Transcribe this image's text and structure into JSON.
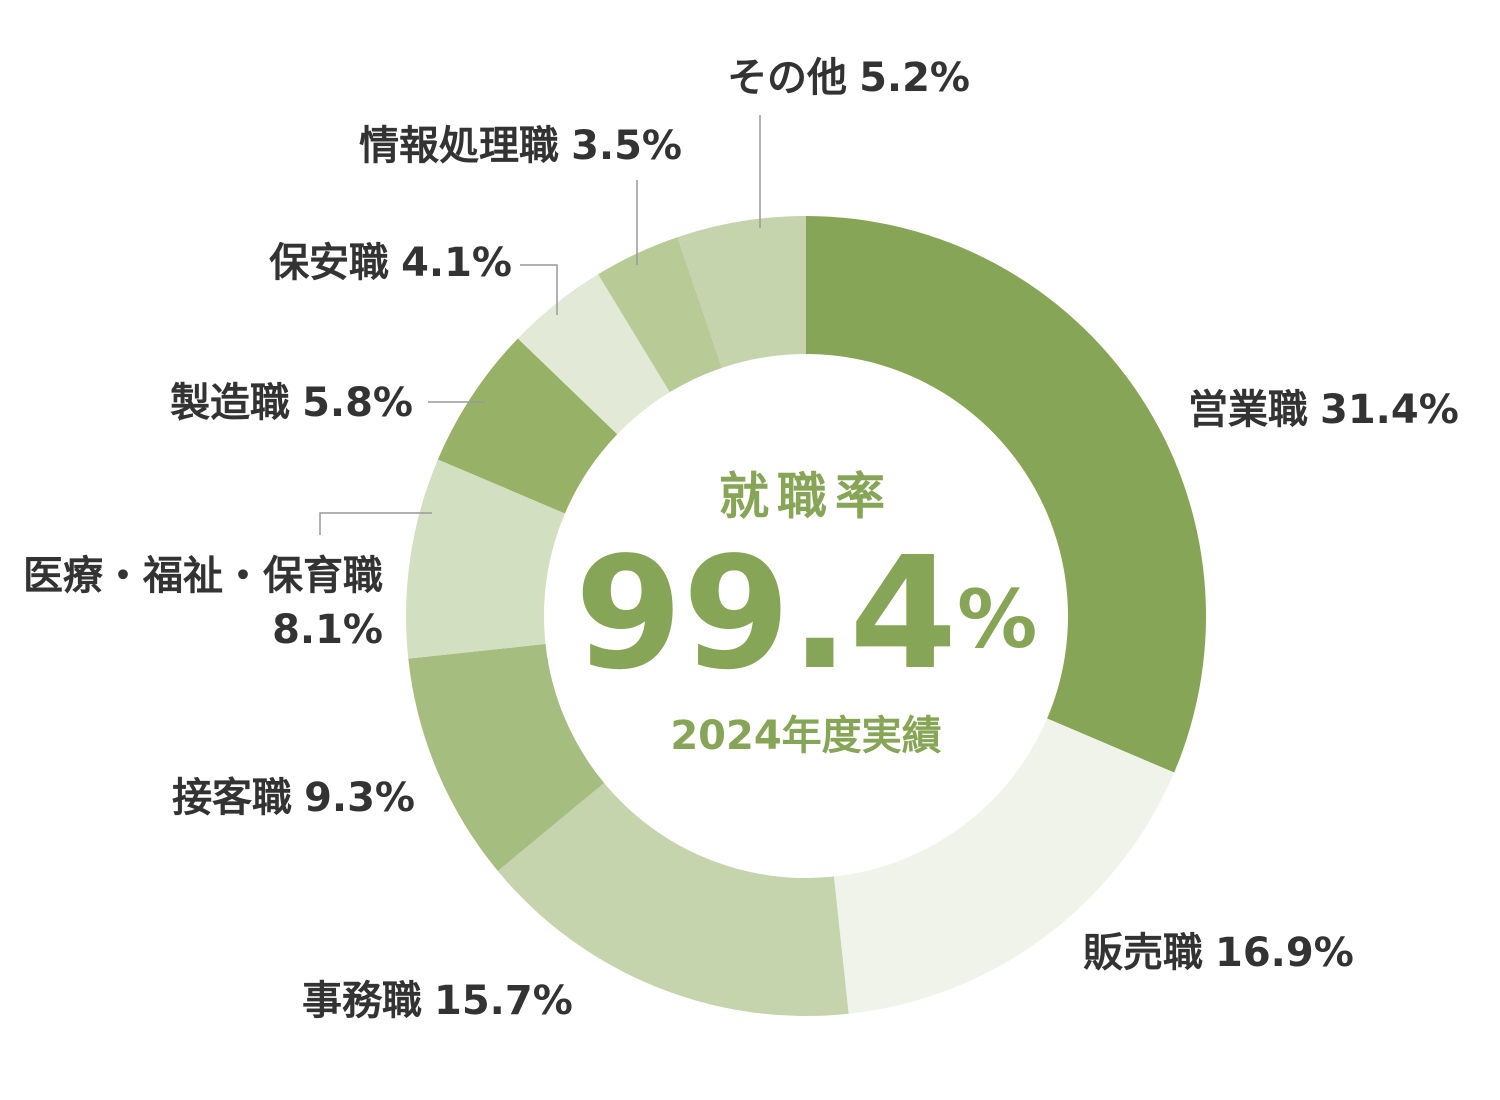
{
  "chart_data": {
    "type": "donut",
    "categories": [
      "営業職",
      "販売職",
      "事務職",
      "接客職",
      "医療・福祉・保育職",
      "製造職",
      "保安職",
      "情報処理職",
      "その他"
    ],
    "values": [
      31.4,
      16.9,
      15.7,
      9.3,
      8.1,
      5.8,
      4.1,
      3.5,
      5.2
    ],
    "value_labels": [
      "31.4%",
      "16.9%",
      "15.7%",
      "9.3%",
      "8.1%",
      "5.8%",
      "4.1%",
      "3.5%",
      "5.2%"
    ],
    "colors": [
      "#87a556",
      "#f0f3ea",
      "#c5d4ad",
      "#a6bd80",
      "#d3dfc1",
      "#97b266",
      "#e2e9d6",
      "#b8cb97",
      "#c5d4ad"
    ],
    "center_title": "就職率",
    "center_value": "99.4",
    "center_unit": "%",
    "center_caption": "2024年度実績"
  }
}
